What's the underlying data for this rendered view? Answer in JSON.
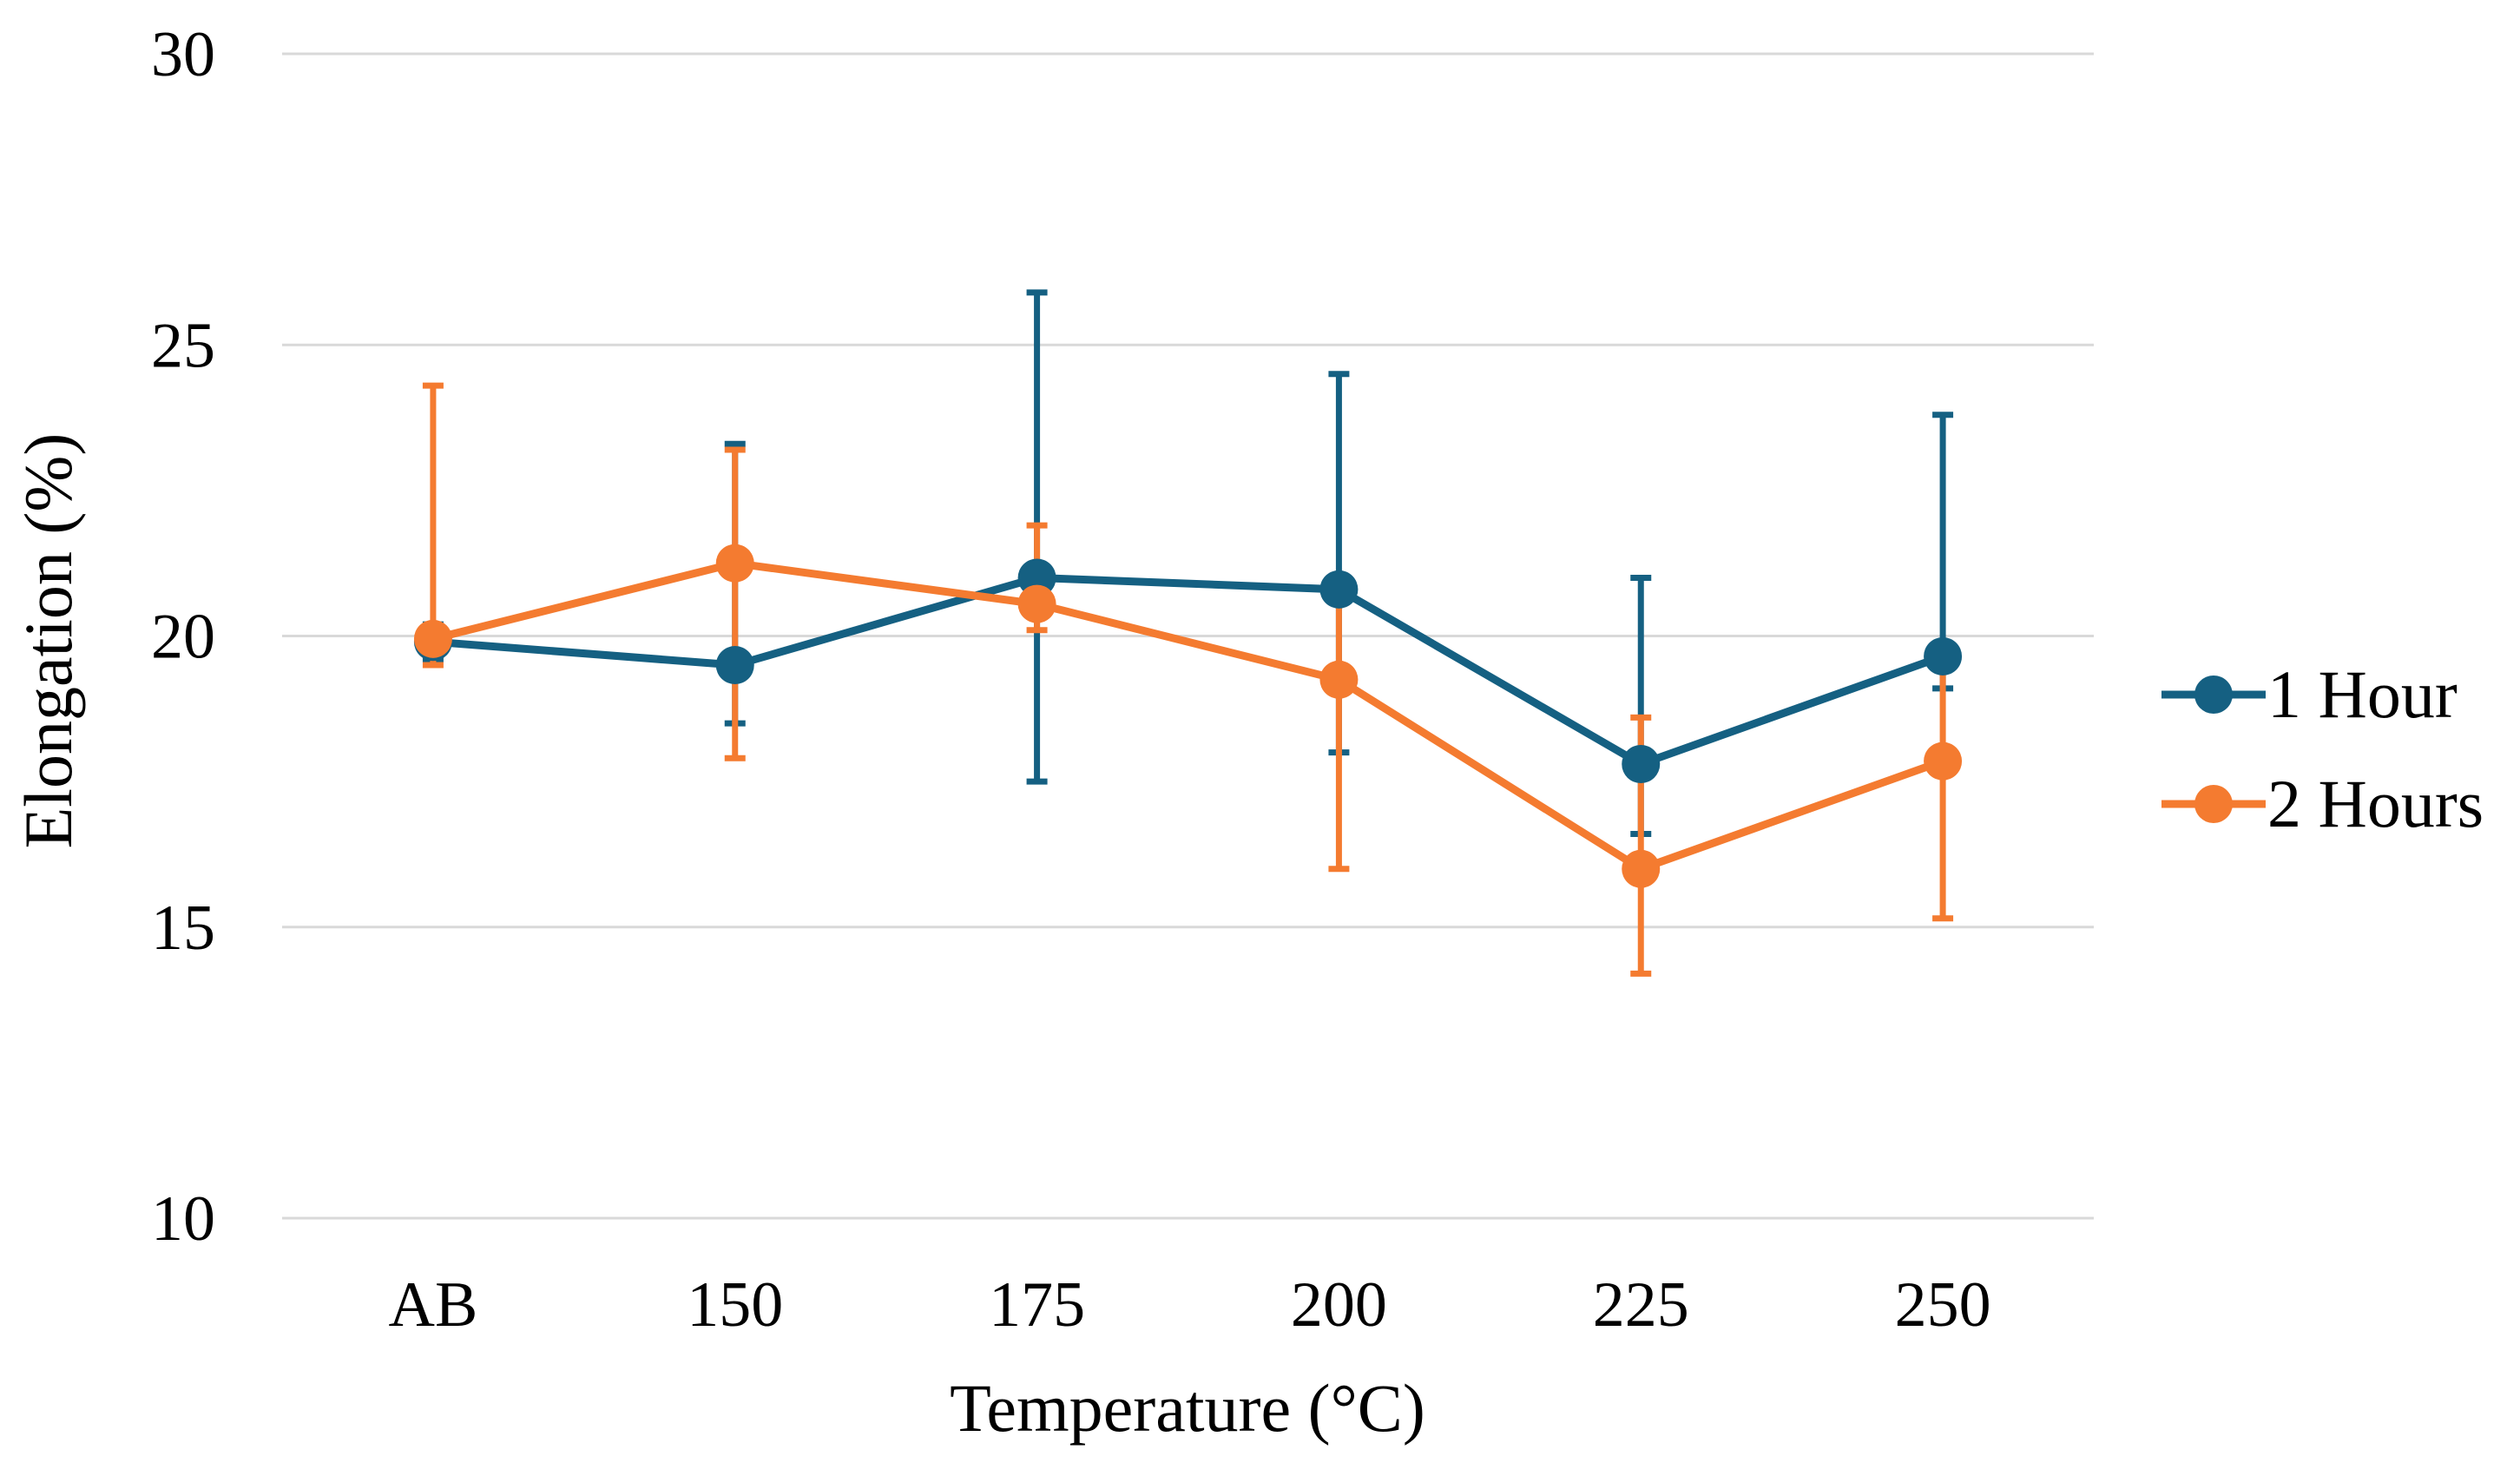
{
  "chart_data": {
    "type": "line",
    "xlabel": "Temperature (°C)",
    "ylabel": "Elongation (%)",
    "categories": [
      "AB",
      "150",
      "175",
      "200",
      "225",
      "250"
    ],
    "ylim": [
      10,
      30
    ],
    "yticks": [
      10,
      15,
      20,
      25,
      30
    ],
    "grid": true,
    "legend_position": "right",
    "series": [
      {
        "name": "1 Hour",
        "color": "#156082",
        "values": [
          19.9,
          19.5,
          21.0,
          20.8,
          17.8,
          19.65
        ],
        "err_low": [
          19.6,
          18.5,
          17.5,
          18.0,
          16.6,
          19.1
        ],
        "err_high": [
          20.2,
          23.3,
          25.9,
          24.5,
          21.0,
          23.8
        ]
      },
      {
        "name": "2 Hours",
        "color": "#F47B30",
        "values": [
          19.95,
          21.25,
          20.55,
          19.25,
          16.0,
          17.85
        ],
        "err_low": [
          19.5,
          17.9,
          20.1,
          16.0,
          14.2,
          15.15
        ],
        "err_high": [
          24.3,
          23.2,
          21.9,
          20.8,
          18.6,
          19.6
        ]
      }
    ]
  }
}
